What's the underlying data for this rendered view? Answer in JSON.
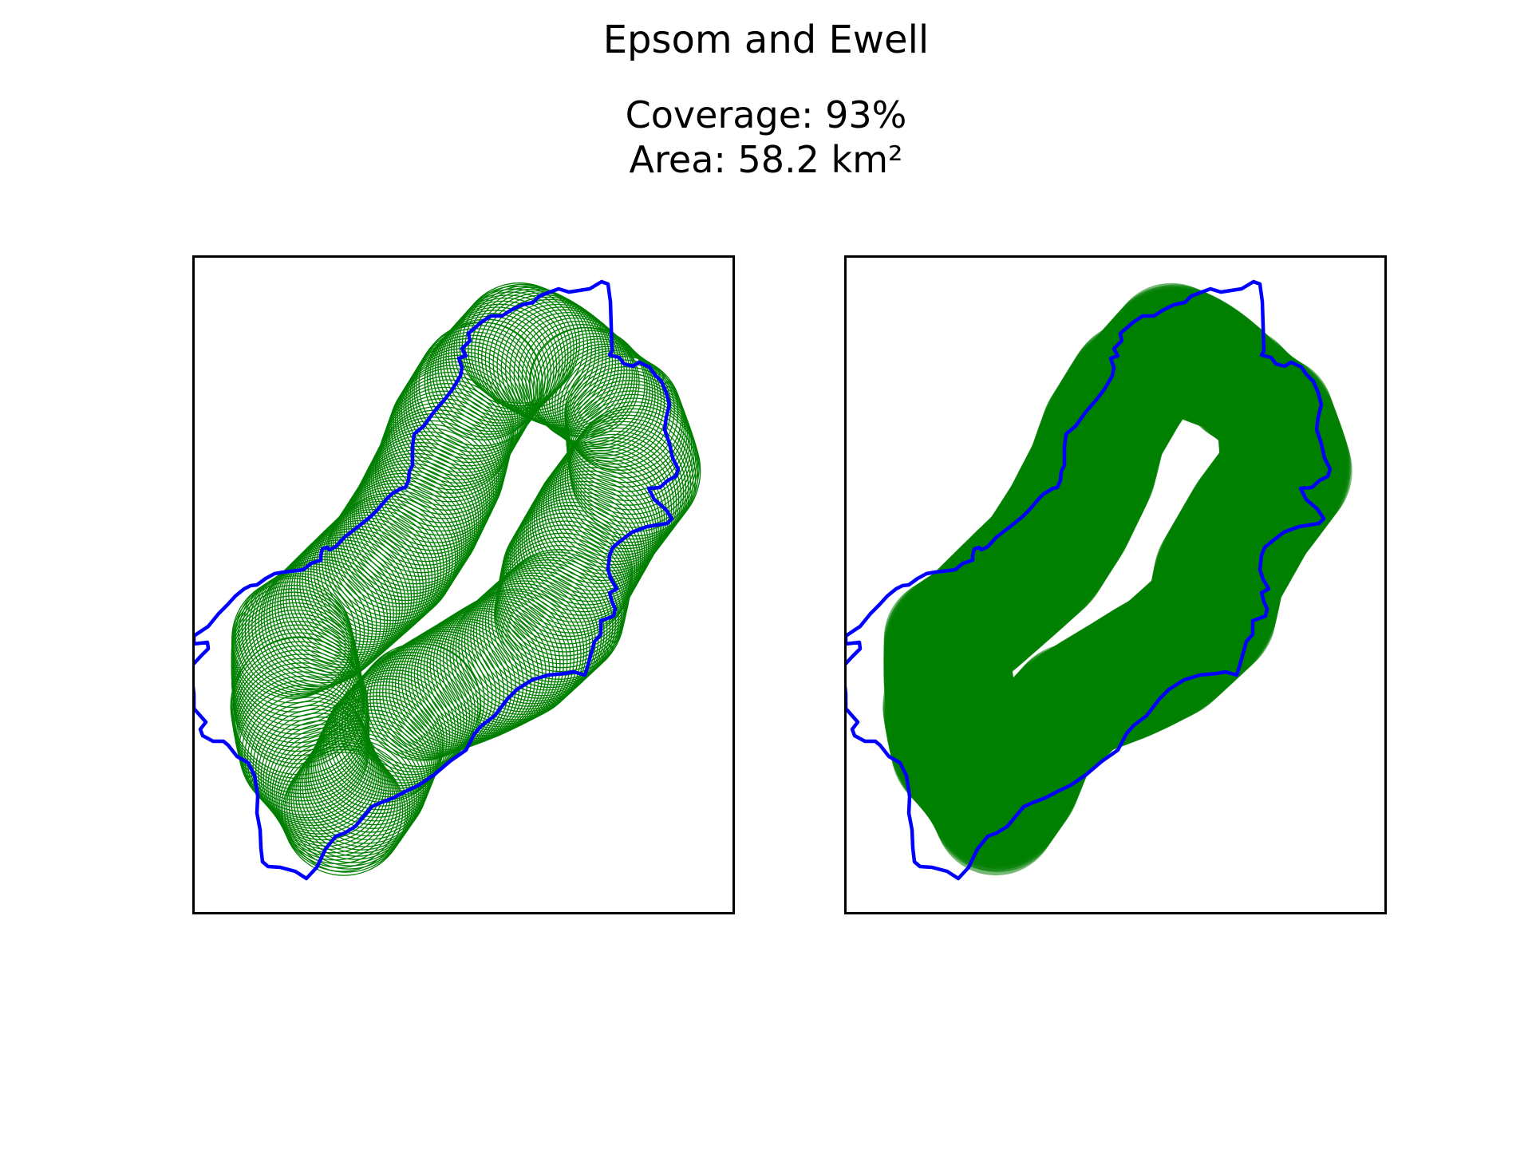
{
  "figure": {
    "title": "Epsom and Ewell",
    "coverage_text": "Coverage: 93%",
    "area_text": "Area: 58.2 km²"
  },
  "colors": {
    "boundary": "#0000ff",
    "coverage": "#008000",
    "frame": "#000000",
    "background": "#ffffff"
  },
  "chart_data": [
    {
      "type": "map",
      "panel": "left",
      "style": "circle-outlines",
      "title": "",
      "xlabel": "",
      "ylabel": "",
      "grid": false,
      "ticks": false
    },
    {
      "type": "map",
      "panel": "right",
      "style": "filled-circles",
      "title": "",
      "xlabel": "",
      "ylabel": "",
      "grid": false,
      "ticks": false
    }
  ]
}
